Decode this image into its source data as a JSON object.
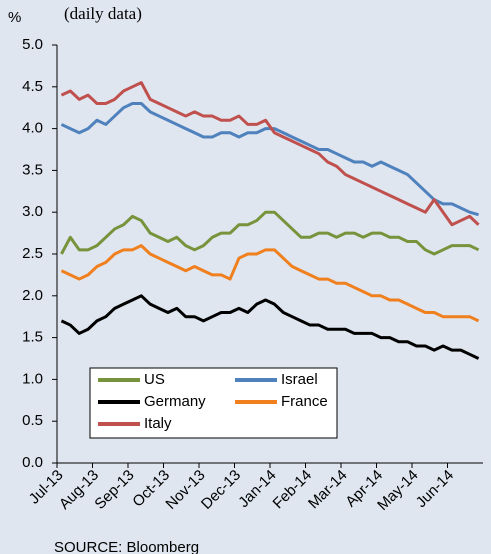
{
  "chart_data": {
    "type": "line",
    "y_unit": "%",
    "subtitle": "(daily data)",
    "source": "SOURCE: Bloomberg",
    "categories": [
      "Jul-13",
      null,
      null,
      null,
      "Aug-13",
      null,
      null,
      null,
      "Sep-13",
      null,
      null,
      null,
      "Oct-13",
      null,
      null,
      null,
      "Nov-13",
      null,
      null,
      null,
      "Dec-13",
      null,
      null,
      null,
      "Jan-14",
      null,
      null,
      null,
      "Feb-14",
      null,
      null,
      null,
      "Mar-14",
      null,
      null,
      null,
      "Apr-14",
      null,
      null,
      null,
      "May-14",
      null,
      null,
      null,
      "Jun-14",
      null,
      null,
      null
    ],
    "series": [
      {
        "name": "US",
        "color": "#77933c",
        "values": [
          2.5,
          2.7,
          2.55,
          2.55,
          2.6,
          2.7,
          2.8,
          2.85,
          2.95,
          2.9,
          2.75,
          2.7,
          2.65,
          2.7,
          2.6,
          2.55,
          2.6,
          2.7,
          2.75,
          2.75,
          2.85,
          2.85,
          2.9,
          3.0,
          3.0,
          2.9,
          2.8,
          2.7,
          2.7,
          2.75,
          2.75,
          2.7,
          2.75,
          2.75,
          2.7,
          2.75,
          2.75,
          2.7,
          2.7,
          2.65,
          2.65,
          2.55,
          2.5,
          2.55,
          2.6,
          2.6,
          2.6,
          2.55
        ]
      },
      {
        "name": "Israel",
        "color": "#4f81bd",
        "values": [
          4.05,
          4.0,
          3.95,
          4.0,
          4.1,
          4.05,
          4.15,
          4.25,
          4.3,
          4.3,
          4.2,
          4.15,
          4.1,
          4.05,
          4.0,
          3.95,
          3.9,
          3.9,
          3.95,
          3.95,
          3.9,
          3.95,
          3.95,
          4.0,
          4.0,
          3.95,
          3.9,
          3.85,
          3.8,
          3.75,
          3.75,
          3.7,
          3.65,
          3.6,
          3.6,
          3.55,
          3.6,
          3.55,
          3.5,
          3.45,
          3.35,
          3.25,
          3.15,
          3.1,
          3.1,
          3.05,
          3.0,
          2.97
        ]
      },
      {
        "name": "Germany",
        "color": "#000000",
        "values": [
          1.7,
          1.65,
          1.55,
          1.6,
          1.7,
          1.75,
          1.85,
          1.9,
          1.95,
          2.0,
          1.9,
          1.85,
          1.8,
          1.85,
          1.75,
          1.75,
          1.7,
          1.75,
          1.8,
          1.8,
          1.85,
          1.8,
          1.9,
          1.95,
          1.9,
          1.8,
          1.75,
          1.7,
          1.65,
          1.65,
          1.6,
          1.6,
          1.6,
          1.55,
          1.55,
          1.55,
          1.5,
          1.5,
          1.45,
          1.45,
          1.4,
          1.4,
          1.35,
          1.4,
          1.35,
          1.35,
          1.3,
          1.25
        ]
      },
      {
        "name": "France",
        "color": "#f07f1e",
        "values": [
          2.3,
          2.25,
          2.2,
          2.25,
          2.35,
          2.4,
          2.5,
          2.55,
          2.55,
          2.6,
          2.5,
          2.45,
          2.4,
          2.35,
          2.3,
          2.35,
          2.3,
          2.25,
          2.25,
          2.2,
          2.45,
          2.5,
          2.5,
          2.55,
          2.55,
          2.45,
          2.35,
          2.3,
          2.25,
          2.2,
          2.2,
          2.15,
          2.15,
          2.1,
          2.05,
          2.0,
          2.0,
          1.95,
          1.95,
          1.9,
          1.85,
          1.8,
          1.8,
          1.75,
          1.75,
          1.75,
          1.75,
          1.7
        ]
      },
      {
        "name": "Italy",
        "color": "#c0504d",
        "values": [
          4.4,
          4.45,
          4.35,
          4.4,
          4.3,
          4.3,
          4.35,
          4.45,
          4.5,
          4.55,
          4.35,
          4.3,
          4.25,
          4.2,
          4.15,
          4.2,
          4.15,
          4.15,
          4.1,
          4.1,
          4.15,
          4.05,
          4.05,
          4.1,
          3.95,
          3.9,
          3.85,
          3.8,
          3.75,
          3.7,
          3.6,
          3.55,
          3.45,
          3.4,
          3.35,
          3.3,
          3.25,
          3.2,
          3.15,
          3.1,
          3.05,
          3.0,
          3.15,
          3.0,
          2.85,
          2.9,
          2.95,
          2.85
        ]
      }
    ],
    "ylim": [
      0,
      5
    ],
    "yticks": [
      {
        "value": 0,
        "label": "0.0"
      },
      {
        "value": 0.5,
        "label": "0.5"
      },
      {
        "value": 1,
        "label": "1.0"
      },
      {
        "value": 1.5,
        "label": "1.5"
      },
      {
        "value": 2,
        "label": "2.0"
      },
      {
        "value": 2.5,
        "label": "2.5"
      },
      {
        "value": 3,
        "label": "3.0"
      },
      {
        "value": 3.5,
        "label": "3.5"
      },
      {
        "value": 4,
        "label": "4.0"
      },
      {
        "value": 4.5,
        "label": "4.5"
      },
      {
        "value": 5,
        "label": "5.0"
      }
    ],
    "grid": false,
    "legend_position": "lower-left"
  }
}
